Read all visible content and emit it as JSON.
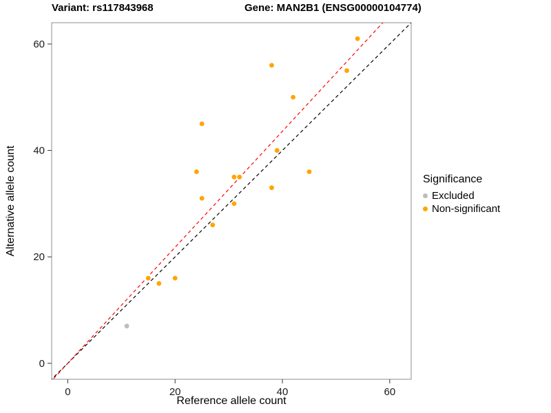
{
  "chart_data": {
    "type": "scatter",
    "title_left": "Variant: rs117843968",
    "title_right": "Gene: MAN2B1 (ENSG00000104774)",
    "xlabel": "Reference allele count",
    "ylabel": "Alternative allele count",
    "xlim": [
      -3,
      64
    ],
    "ylim": [
      -3,
      64
    ],
    "xticks": [
      0,
      20,
      40,
      60
    ],
    "yticks": [
      0,
      20,
      40,
      60
    ],
    "grid": false,
    "legend": {
      "title": "Significance",
      "position": "right",
      "entries": [
        {
          "label": "Excluded",
          "color": "#bdbdbd"
        },
        {
          "label": "Non-significant",
          "color": "#ffa500"
        }
      ]
    },
    "series": [
      {
        "name": "Excluded",
        "color": "#bdbdbd",
        "points": [
          [
            11,
            7
          ]
        ]
      },
      {
        "name": "Non-significant",
        "color": "#ffa500",
        "points": [
          [
            15,
            16
          ],
          [
            17,
            15
          ],
          [
            20,
            16
          ],
          [
            24,
            36
          ],
          [
            25,
            45
          ],
          [
            25,
            31
          ],
          [
            27,
            26
          ],
          [
            31,
            35
          ],
          [
            32,
            35
          ],
          [
            31,
            30
          ],
          [
            38,
            56
          ],
          [
            38,
            33
          ],
          [
            39,
            40
          ],
          [
            42,
            50
          ],
          [
            45,
            36
          ],
          [
            52,
            55
          ],
          [
            54,
            61
          ]
        ]
      }
    ],
    "lines": [
      {
        "name": "identity",
        "color": "#000000",
        "dashed": true,
        "slope": 1.0,
        "intercept": 0
      },
      {
        "name": "fit",
        "color": "#ff0000",
        "dashed": true,
        "slope": 1.09,
        "intercept": 0
      }
    ]
  }
}
